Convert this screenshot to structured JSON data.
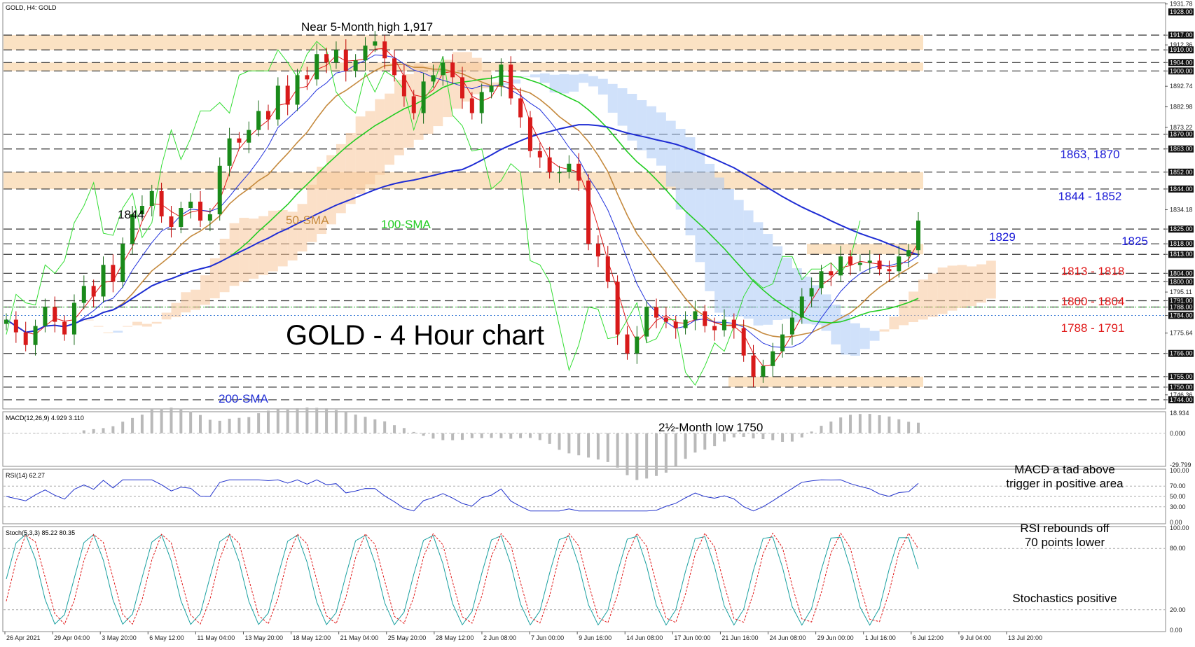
{
  "chart_data": {
    "type": "candlestick",
    "symbol_header": "GOLD, H4:  GOLD",
    "title": "GOLD - 4 Hour chart",
    "ylim": [
      1740,
      1932
    ],
    "price_axis_ticks": [
      "1931.78",
      "1917.00",
      "1912.36",
      "1910.00",
      "1904.00",
      "1900.00",
      "1892.74",
      "1882.98",
      "1873.22",
      "1870.00",
      "1863.00",
      "1852.00",
      "1844.00",
      "1834.18",
      "1825.00",
      "1818.00",
      "1813.00",
      "1804.00",
      "1800.00",
      "1795.11",
      "1791.00",
      "1788.00",
      "1784.00",
      "1775.64",
      "1766.00",
      "1755.00",
      "1750.00",
      "1746.36",
      "1744.00"
    ],
    "highlighted_ticks": [
      "1928.00",
      "1917.00",
      "1910.00",
      "1904.00",
      "1900.00",
      "1870.00",
      "1863.00",
      "1852.00",
      "1844.00",
      "1825.00",
      "1818.00",
      "1813.00",
      "1804.00",
      "1800.00",
      "1791.00",
      "1788.00",
      "1784.00",
      "1766.00",
      "1755.00",
      "1750.00",
      "1744.00"
    ],
    "x_ticks": [
      "26 Apr 2021",
      "29 Apr 04:00",
      "3 May 20:00",
      "6 May 12:00",
      "11 May 04:00",
      "13 May 20:00",
      "18 May 12:00",
      "21 May 04:00",
      "25 May 20:00",
      "28 May 12:00",
      "2 Jun 08:00",
      "7 Jun 00:00",
      "9 Jun 16:00",
      "14 Jun 08:00",
      "17 Jun 00:00",
      "21 Jun 16:00",
      "24 Jun 08:00",
      "29 Jun 00:00",
      "1 Jul 16:00",
      "6 Jul 12:00",
      "9 Jul 04:00",
      "13 Jul 20:00"
    ],
    "price_path": [
      1782,
      1776,
      1770,
      1779,
      1788,
      1781,
      1775,
      1790,
      1798,
      1793,
      1808,
      1800,
      1818,
      1832,
      1836,
      1843,
      1831,
      1826,
      1835,
      1838,
      1829,
      1832,
      1855,
      1868,
      1866,
      1872,
      1881,
      1877,
      1893,
      1884,
      1898,
      1896,
      1908,
      1904,
      1910,
      1900,
      1905,
      1912,
      1914,
      1906,
      1898,
      1888,
      1880,
      1895,
      1898,
      1904,
      1897,
      1887,
      1880,
      1890,
      1893,
      1903,
      1887,
      1878,
      1862,
      1859,
      1852,
      1852,
      1856,
      1848,
      1818,
      1812,
      1800,
      1775,
      1766,
      1774,
      1788,
      1783,
      1781,
      1778,
      1782,
      1786,
      1779,
      1777,
      1782,
      1778,
      1765,
      1755,
      1760,
      1767,
      1775,
      1783,
      1793,
      1797,
      1805,
      1803,
      1812,
      1808,
      1809,
      1810,
      1806,
      1805,
      1812,
      1815,
      1829
    ],
    "moving_averages": [
      {
        "name": "50-SMA",
        "color": "#c58a3e",
        "label": "50-SMA"
      },
      {
        "name": "100-SMA",
        "color": "#22cc22",
        "label": "100-SMA"
      },
      {
        "name": "200-SMA",
        "color": "#1f2dd4",
        "label": "200-SMA"
      }
    ],
    "zones": [
      {
        "low": 1910,
        "high": 1917,
        "label": "Near 5-Month high 1,917"
      },
      {
        "low": 1900,
        "high": 1904
      },
      {
        "low": 1844,
        "high": 1852,
        "label": "1844 - 1852"
      },
      {
        "low": 1813,
        "high": 1818,
        "label": "1813 - 1818"
      },
      {
        "low": 1750,
        "high": 1755,
        "label": "2½-Month low 1750"
      }
    ],
    "dashed_levels": [
      1917,
      1910,
      1904,
      1900,
      1870,
      1863,
      1852,
      1844,
      1825,
      1818,
      1813,
      1804,
      1800,
      1791,
      1788,
      1766,
      1755,
      1750,
      1744
    ],
    "annotations": [
      {
        "text": "Near 5-Month high 1,917",
        "color": "black"
      },
      {
        "text": "1844",
        "color": "black"
      },
      {
        "text": "50-SMA",
        "color": "#c58a3e"
      },
      {
        "text": "100-SMA",
        "color": "#22cc22"
      },
      {
        "text": "200-SMA",
        "color": "#1f2dd4"
      },
      {
        "text": "2½-Month low 1750",
        "color": "black"
      },
      {
        "text": "1829",
        "color": "#1a1ad6"
      }
    ],
    "right_labels": [
      {
        "text": "1863, 1870",
        "color": "#1a1ad6"
      },
      {
        "text": "1844 - 1852",
        "color": "#1a1ad6"
      },
      {
        "text": "1825",
        "color": "#1a1ad6"
      },
      {
        "text": "1813 - 1818",
        "color": "#e01818"
      },
      {
        "text": "1800 - 1804",
        "color": "#e01818"
      },
      {
        "text": "1788 - 1791",
        "color": "#e01818"
      }
    ],
    "macd": {
      "header": "MACD(12,26,9) 4.929 3.110",
      "ticks": [
        "18.934",
        "0.000",
        "-29.799"
      ],
      "note": "MACD a tad above trigger in positive area"
    },
    "rsi": {
      "header": "RSI(14) 62.27",
      "ticks": [
        "100.00",
        "70.00",
        "50.00",
        "30.00",
        "0.00"
      ],
      "note": "RSI rebounds off 70 points lower"
    },
    "stoch": {
      "header": "Stoch(5,3,3) 85.22 80.35",
      "ticks": [
        "100.00",
        "80.00",
        "20.00",
        "0.00"
      ],
      "note": "Stochastics positive"
    }
  }
}
